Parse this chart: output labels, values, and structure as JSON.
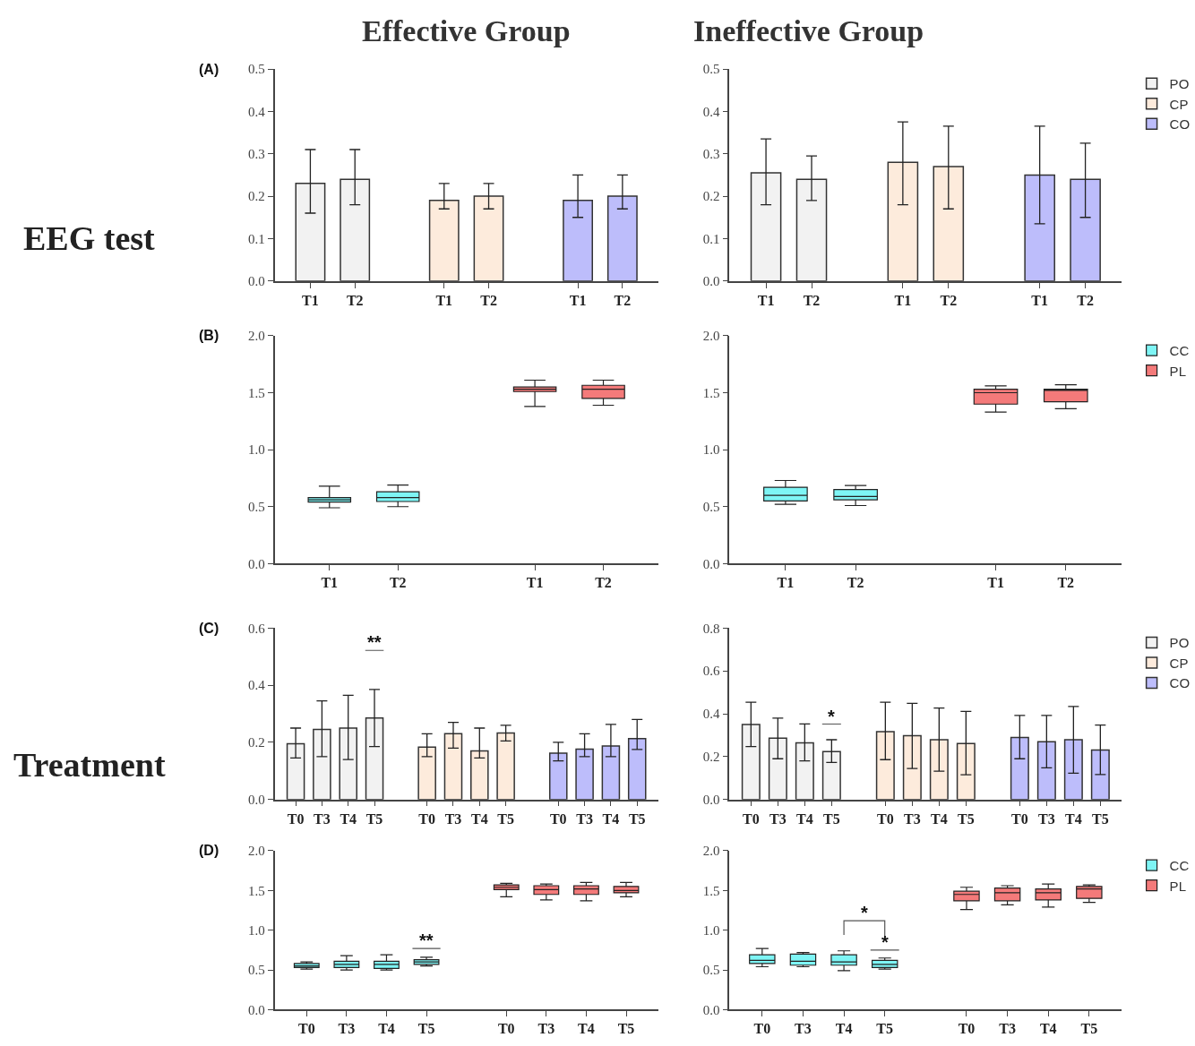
{
  "chart_data": [
    {
      "type": "bar",
      "title": "Effective Group",
      "annotations": [
        "(A)",
        "EEG test"
      ],
      "categories": [
        "T1",
        "T2",
        "T1",
        "T2",
        "T1",
        "T2"
      ],
      "ylim": [
        0,
        0.5
      ],
      "yticks": [
        {
          "value": 0,
          "label": "0.0"
        },
        0.1,
        0.2,
        0.3,
        0.4,
        0.5
      ],
      "legend": false,
      "series": [
        {
          "color": "#f2f2f2",
          "values": [
            0.23,
            0.24,
            null,
            null,
            null,
            null
          ],
          "errors": [
            [
              0.16,
              0.31
            ],
            [
              0.18,
              0.31
            ],
            null,
            null,
            null,
            null
          ]
        },
        {
          "color": "#fdebdc",
          "values": [
            null,
            null,
            0.19,
            0.2,
            null,
            null
          ],
          "errors": [
            null,
            null,
            [
              0.17,
              0.23
            ],
            [
              0.17,
              0.23
            ],
            null,
            null
          ]
        },
        {
          "color": "#bdbdfb",
          "values": [
            null,
            null,
            null,
            null,
            0.19,
            0.2
          ],
          "errors": [
            null,
            null,
            null,
            null,
            [
              0.15,
              0.25
            ],
            [
              0.17,
              0.25
            ]
          ]
        }
      ]
    },
    {
      "type": "bar",
      "title": "Ineffective Group",
      "categories": [
        "T1",
        "T2",
        "T1",
        "T2",
        "T1",
        "T2"
      ],
      "ylim": [
        0,
        0.5
      ],
      "yticks": [
        {
          "value": 0,
          "label": "0.0"
        },
        0.1,
        0.2,
        0.3,
        0.4,
        0.5
      ],
      "legend": "top right",
      "series": [
        {
          "name": "PO",
          "color": "#f2f2f2",
          "values": [
            0.255,
            0.24,
            null,
            null,
            null,
            null
          ],
          "errors": [
            [
              0.18,
              0.335
            ],
            [
              0.19,
              0.295
            ],
            null,
            null,
            null,
            null
          ]
        },
        {
          "name": "CP",
          "color": "#fdebdc",
          "values": [
            null,
            null,
            0.28,
            0.27,
            null,
            null
          ],
          "errors": [
            null,
            null,
            [
              0.18,
              0.375
            ],
            [
              0.17,
              0.365
            ],
            null,
            null
          ]
        },
        {
          "name": "CO",
          "color": "#bdbdfb",
          "values": [
            null,
            null,
            null,
            null,
            0.25,
            0.24
          ],
          "errors": [
            null,
            null,
            null,
            null,
            [
              0.135,
              0.365
            ],
            [
              0.15,
              0.325
            ]
          ]
        }
      ]
    },
    {
      "type": "box",
      "annotations": [
        "(B)"
      ],
      "categories": [
        "T1",
        "T2",
        "T1",
        "T2"
      ],
      "ylim": [
        0,
        2
      ],
      "yticks": [
        {
          "value": 0,
          "label": "0.0"
        },
        0.5,
        {
          "value": 1,
          "label": "1.0"
        },
        1.5,
        {
          "value": 2,
          "label": "2.0"
        }
      ],
      "legend": false,
      "series": [
        {
          "color": "#7ef5f5",
          "boxes": [
            {
              "low": 0.49,
              "q1": 0.54,
              "median": 0.56,
              "q3": 0.58,
              "high": 0.68
            },
            {
              "low": 0.5,
              "q1": 0.545,
              "median": 0.58,
              "q3": 0.63,
              "high": 0.69
            },
            null,
            null
          ]
        },
        {
          "color": "#f47a7a",
          "boxes": [
            null,
            null,
            {
              "low": 1.38,
              "q1": 1.51,
              "median": 1.53,
              "q3": 1.55,
              "high": 1.61
            },
            {
              "low": 1.39,
              "q1": 1.45,
              "median": 1.53,
              "q3": 1.565,
              "high": 1.61
            }
          ]
        }
      ]
    },
    {
      "type": "box",
      "categories": [
        "T1",
        "T2",
        "T1",
        "T2"
      ],
      "ylim": [
        0,
        2
      ],
      "yticks": [
        {
          "value": 0,
          "label": "0.0"
        },
        0.5,
        {
          "value": 1,
          "label": "1.0"
        },
        1.5,
        {
          "value": 2,
          "label": "2.0"
        }
      ],
      "legend": "top right",
      "series": [
        {
          "name": "CC",
          "color": "#7ef5f5",
          "boxes": [
            {
              "low": 0.52,
              "q1": 0.55,
              "median": 0.6,
              "q3": 0.67,
              "high": 0.73
            },
            {
              "low": 0.51,
              "q1": 0.56,
              "median": 0.59,
              "q3": 0.65,
              "high": 0.685
            },
            null,
            null
          ]
        },
        {
          "name": "PL",
          "color": "#f47a7a",
          "boxes": [
            null,
            null,
            {
              "low": 1.33,
              "q1": 1.4,
              "median": 1.5,
              "q3": 1.53,
              "high": 1.56
            },
            {
              "low": 1.36,
              "q1": 1.42,
              "median": 1.52,
              "q3": 1.53,
              "high": 1.57
            }
          ]
        }
      ]
    },
    {
      "type": "bar",
      "annotations": [
        "(C)",
        "Treatment",
        "**"
      ],
      "categories": [
        "T0",
        "T3",
        "T4",
        "T5",
        "T0",
        "T3",
        "T4",
        "T5",
        "T0",
        "T3",
        "T4",
        "T5"
      ],
      "ylim": [
        0,
        0.6
      ],
      "yticks": [
        {
          "value": 0,
          "label": "0.0"
        },
        0.2,
        0.4,
        0.6
      ],
      "legend": false,
      "series": [
        {
          "color": "#f2f2f2",
          "values": [
            0.195,
            0.245,
            0.25,
            0.285,
            null,
            null,
            null,
            null,
            null,
            null,
            null,
            null
          ],
          "errors": [
            [
              0.145,
              0.25
            ],
            [
              0.15,
              0.345
            ],
            [
              0.14,
              0.365
            ],
            [
              0.185,
              0.385
            ],
            null,
            null,
            null,
            null,
            null,
            null,
            null,
            null
          ]
        },
        {
          "color": "#fdebdc",
          "values": [
            null,
            null,
            null,
            null,
            0.183,
            0.23,
            0.17,
            0.233,
            null,
            null,
            null,
            null
          ],
          "errors": [
            null,
            null,
            null,
            null,
            [
              0.15,
              0.23
            ],
            [
              0.18,
              0.27
            ],
            [
              0.145,
              0.25
            ],
            [
              0.205,
              0.26
            ],
            null,
            null,
            null,
            null
          ]
        },
        {
          "color": "#bdbdfb",
          "values": [
            null,
            null,
            null,
            null,
            null,
            null,
            null,
            null,
            0.162,
            0.176,
            0.187,
            0.213
          ],
          "errors": [
            null,
            null,
            null,
            null,
            null,
            null,
            null,
            null,
            [
              0.135,
              0.2
            ],
            [
              0.15,
              0.23
            ],
            [
              0.15,
              0.263
            ],
            [
              0.175,
              0.28
            ]
          ]
        }
      ]
    },
    {
      "type": "bar",
      "annotations": [
        "*"
      ],
      "categories": [
        "T0",
        "T3",
        "T4",
        "T5",
        "T0",
        "T3",
        "T4",
        "T5",
        "T0",
        "T3",
        "T4",
        "T5"
      ],
      "ylim": [
        0,
        0.8
      ],
      "yticks": [
        {
          "value": 0,
          "label": "0.0"
        },
        0.2,
        0.4,
        0.6,
        0.8
      ],
      "legend": "top right",
      "series": [
        {
          "name": "PO",
          "color": "#f2f2f2",
          "values": [
            0.35,
            0.286,
            0.264,
            0.224,
            null,
            null,
            null,
            null,
            null,
            null,
            null,
            null
          ],
          "errors": [
            [
              0.247,
              0.454
            ],
            [
              0.19,
              0.38
            ],
            [
              0.18,
              0.353
            ],
            [
              0.173,
              0.279
            ],
            null,
            null,
            null,
            null,
            null,
            null,
            null,
            null
          ]
        },
        {
          "name": "CP",
          "color": "#fdebdc",
          "values": [
            null,
            null,
            null,
            null,
            0.317,
            0.298,
            0.279,
            0.261,
            null,
            null,
            null,
            null
          ],
          "errors": [
            null,
            null,
            null,
            null,
            [
              0.186,
              0.454
            ],
            [
              0.145,
              0.449
            ],
            [
              0.132,
              0.427
            ],
            [
              0.115,
              0.411
            ],
            null,
            null,
            null,
            null
          ]
        },
        {
          "name": "CO",
          "color": "#bdbdfb",
          "values": [
            null,
            null,
            null,
            null,
            null,
            null,
            null,
            null,
            0.289,
            0.27,
            0.279,
            0.231
          ],
          "errors": [
            null,
            null,
            null,
            null,
            null,
            null,
            null,
            null,
            [
              0.19,
              0.392
            ],
            [
              0.148,
              0.392
            ],
            [
              0.123,
              0.434
            ],
            [
              0.116,
              0.347
            ]
          ]
        }
      ]
    },
    {
      "type": "box",
      "annotations": [
        "(D)",
        "**"
      ],
      "categories": [
        "T0",
        "T3",
        "T4",
        "T5",
        "T0",
        "T3",
        "T4",
        "T5"
      ],
      "ylim": [
        0,
        2
      ],
      "yticks": [
        {
          "value": 0,
          "label": "0.0"
        },
        0.5,
        {
          "value": 1,
          "label": "1.0"
        },
        1.5,
        {
          "value": 2,
          "label": "2.0"
        }
      ],
      "legend": false,
      "series": [
        {
          "color": "#7ef5f5",
          "boxes": [
            {
              "low": 0.51,
              "q1": 0.53,
              "median": 0.55,
              "q3": 0.58,
              "high": 0.6
            },
            {
              "low": 0.5,
              "q1": 0.53,
              "median": 0.57,
              "q3": 0.61,
              "high": 0.68
            },
            {
              "low": 0.5,
              "q1": 0.52,
              "median": 0.57,
              "q3": 0.61,
              "high": 0.69
            },
            {
              "low": 0.55,
              "q1": 0.57,
              "median": 0.6,
              "q3": 0.63,
              "high": 0.66
            },
            null,
            null,
            null,
            null
          ]
        },
        {
          "color": "#f47a7a",
          "boxes": [
            null,
            null,
            null,
            null,
            {
              "low": 1.42,
              "q1": 1.51,
              "median": 1.54,
              "q3": 1.57,
              "high": 1.59
            },
            {
              "low": 1.38,
              "q1": 1.45,
              "median": 1.51,
              "q3": 1.56,
              "high": 1.58
            },
            {
              "low": 1.37,
              "q1": 1.45,
              "median": 1.52,
              "q3": 1.56,
              "high": 1.6
            },
            {
              "low": 1.42,
              "q1": 1.47,
              "median": 1.5,
              "q3": 1.55,
              "high": 1.6
            }
          ]
        }
      ]
    },
    {
      "type": "box",
      "annotations": [
        "*",
        "*"
      ],
      "categories": [
        "T0",
        "T3",
        "T4",
        "T5",
        "T0",
        "T3",
        "T4",
        "T5"
      ],
      "ylim": [
        0,
        2
      ],
      "yticks": [
        {
          "value": 0,
          "label": "0.0"
        },
        0.5,
        {
          "value": 1,
          "label": "1.0"
        },
        1.5,
        {
          "value": 2,
          "label": "2.0"
        }
      ],
      "legend": "top right",
      "series": [
        {
          "name": "CC",
          "color": "#7ef5f5",
          "boxes": [
            {
              "low": 0.54,
              "q1": 0.58,
              "median": 0.62,
              "q3": 0.69,
              "high": 0.77
            },
            {
              "low": 0.54,
              "q1": 0.56,
              "median": 0.61,
              "q3": 0.7,
              "high": 0.72
            },
            {
              "low": 0.49,
              "q1": 0.56,
              "median": 0.6,
              "q3": 0.69,
              "high": 0.74
            },
            {
              "low": 0.51,
              "q1": 0.53,
              "median": 0.57,
              "q3": 0.62,
              "high": 0.65
            },
            null,
            null,
            null,
            null
          ]
        },
        {
          "name": "PL",
          "color": "#f47a7a",
          "boxes": [
            null,
            null,
            null,
            null,
            {
              "low": 1.26,
              "q1": 1.37,
              "median": 1.45,
              "q3": 1.49,
              "high": 1.54
            },
            {
              "low": 1.32,
              "q1": 1.37,
              "median": 1.47,
              "q3": 1.53,
              "high": 1.56
            },
            {
              "low": 1.29,
              "q1": 1.38,
              "median": 1.47,
              "q3": 1.52,
              "high": 1.58
            },
            {
              "low": 1.35,
              "q1": 1.4,
              "median": 1.52,
              "q3": 1.55,
              "high": 1.57
            }
          ]
        }
      ]
    }
  ]
}
